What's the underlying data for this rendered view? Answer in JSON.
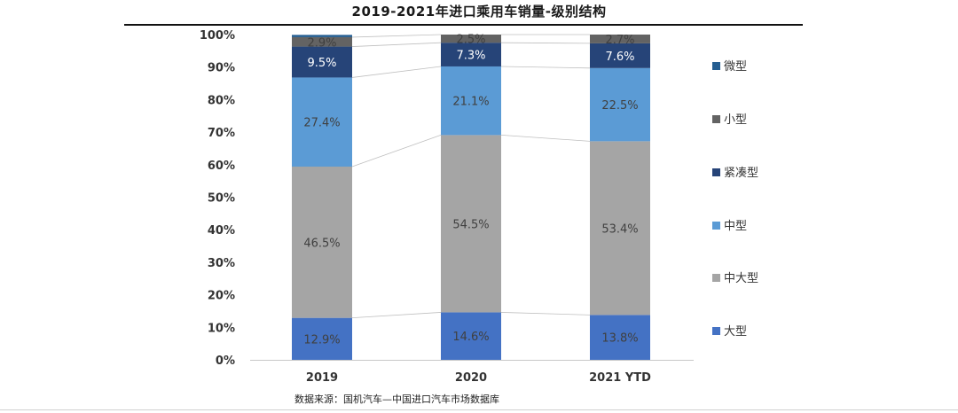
{
  "title": "2019-2021年进口乘用车销量-级别结构",
  "source": "数据来源：国机汽车—中国进口汽车市场数据库",
  "chart_data": {
    "type": "bar",
    "stacked": true,
    "categories": [
      "2019",
      "2020",
      "2021 YTD"
    ],
    "ylim": [
      0,
      100
    ],
    "yticks": [
      "0%",
      "10%",
      "20%",
      "30%",
      "40%",
      "50%",
      "60%",
      "70%",
      "80%",
      "90%",
      "100%"
    ],
    "legend_position": "right",
    "series": [
      {
        "name": "大型",
        "color": "#4472c4",
        "values": [
          12.9,
          14.6,
          13.8
        ],
        "labels": [
          "12.9%",
          "14.6%",
          "13.8%"
        ]
      },
      {
        "name": "中大型",
        "color": "#a5a5a5",
        "values": [
          46.5,
          54.5,
          53.4
        ],
        "labels": [
          "46.5%",
          "54.5%",
          "53.4%"
        ]
      },
      {
        "name": "中型",
        "color": "#5b9bd5",
        "values": [
          27.4,
          21.1,
          22.5
        ],
        "labels": [
          "27.4%",
          "21.1%",
          "22.5%"
        ]
      },
      {
        "name": "紧凑型",
        "color": "#264478",
        "values": [
          9.5,
          7.3,
          7.6
        ],
        "labels": [
          "9.5%",
          "7.3%",
          "7.6%"
        ]
      },
      {
        "name": "小型",
        "color": "#636363",
        "values": [
          2.9,
          2.5,
          2.7
        ],
        "labels": [
          "2.9%",
          "2.5%",
          "2.7%"
        ]
      },
      {
        "name": "微型",
        "color": "#255e91",
        "values": [
          0.7,
          0.0,
          0.0
        ],
        "labels": [
          "",
          "",
          ""
        ]
      }
    ]
  }
}
